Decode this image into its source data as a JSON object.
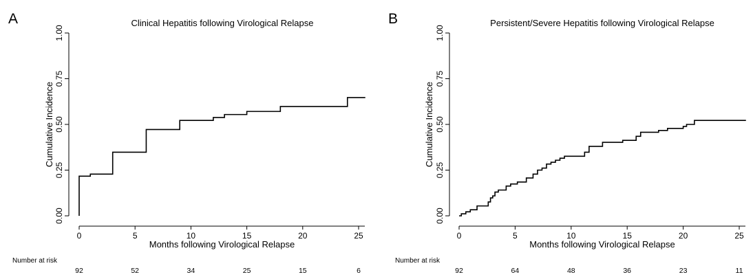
{
  "chart_data": [
    {
      "panel": "A",
      "type": "line",
      "title": "Clinical Hepatitis following Virological Relapse",
      "xlabel": "Months following Virological Relapse",
      "ylabel": "Cumulative Incidence",
      "xlim": [
        0,
        26
      ],
      "ylim": [
        0,
        1
      ],
      "xticks": [
        "0",
        "5",
        "10",
        "15",
        "20",
        "25"
      ],
      "yticks": [
        "0.00",
        "0.25",
        "0.50",
        "0.75",
        "1.00"
      ],
      "grid": false,
      "step": true,
      "series": [
        {
          "x": [
            0,
            0,
            1,
            3,
            6,
            9,
            12,
            13,
            15,
            18,
            24,
            25.6
          ],
          "y": [
            0,
            0.217,
            0.228,
            0.348,
            0.472,
            0.522,
            0.538,
            0.554,
            0.571,
            0.598,
            0.647,
            0.647
          ]
        }
      ],
      "risk_table": {
        "title": "Number at risk",
        "times": [
          0,
          5,
          10,
          15,
          20,
          25
        ],
        "values": [
          "92",
          "52",
          "34",
          "25",
          "15",
          "6"
        ]
      }
    },
    {
      "panel": "B",
      "type": "line",
      "title": "Persistent/Severe Hepatitis following Virological Relapse",
      "xlabel": "Months following Virological Relapse",
      "ylabel": "Cumulative Incidence",
      "xlim": [
        0,
        26
      ],
      "ylim": [
        0,
        1
      ],
      "xticks": [
        "0",
        "5",
        "10",
        "15",
        "20",
        "25"
      ],
      "yticks": [
        "0.00",
        "0.25",
        "0.50",
        "0.75",
        "1.00"
      ],
      "grid": false,
      "step": true,
      "series": [
        {
          "x": [
            0,
            0.2,
            0.6,
            1.0,
            1.6,
            2.6,
            2.8,
            3.0,
            3.2,
            3.5,
            4.2,
            4.6,
            5.2,
            6.0,
            6.6,
            7.0,
            7.4,
            7.8,
            8.2,
            8.6,
            9.0,
            9.4,
            11.2,
            11.6,
            12.8,
            14.6,
            15.8,
            16.2,
            17.8,
            18.6,
            20.0,
            20.3,
            21.0,
            25.6
          ],
          "y": [
            0,
            0.011,
            0.022,
            0.033,
            0.054,
            0.076,
            0.098,
            0.109,
            0.13,
            0.141,
            0.163,
            0.174,
            0.185,
            0.207,
            0.228,
            0.25,
            0.261,
            0.283,
            0.293,
            0.304,
            0.315,
            0.326,
            0.348,
            0.38,
            0.402,
            0.413,
            0.435,
            0.457,
            0.467,
            0.478,
            0.489,
            0.5,
            0.522,
            0.522
          ]
        }
      ],
      "risk_table": {
        "title": "Number at risk",
        "times": [
          0,
          5,
          10,
          15,
          20,
          25
        ],
        "values": [
          "92",
          "64",
          "48",
          "36",
          "23",
          "11"
        ]
      }
    }
  ]
}
